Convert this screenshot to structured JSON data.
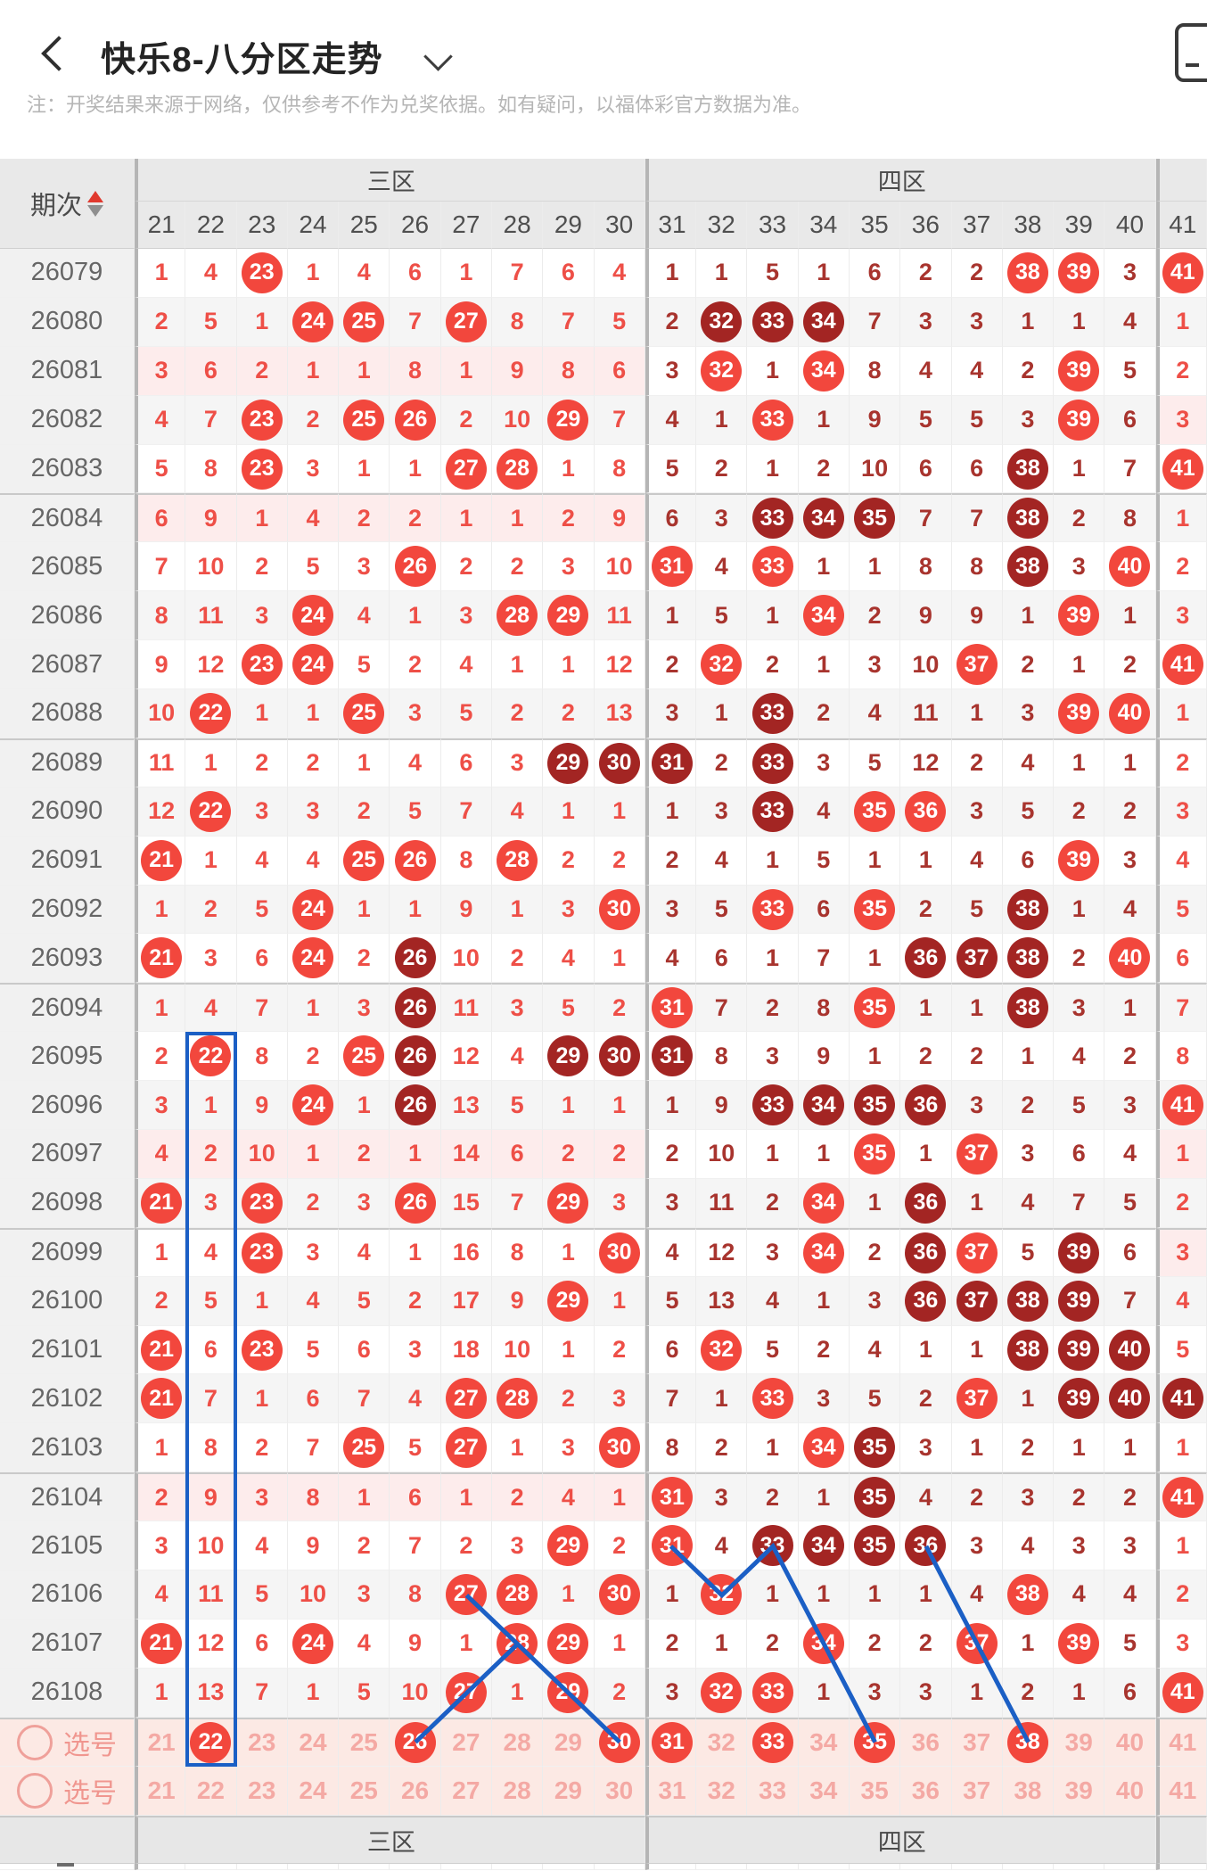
{
  "app": {
    "back_icon": "chevron-left",
    "title": "快乐8-八分区走势",
    "title_dropdown_icon": "chevron-down",
    "corner_icon": "device-screenshot"
  },
  "note": "注：开奖结果来源于网络，仅供参考不作为兑奖依据。如有疑问，以福体彩官方数据为准。",
  "colors": {
    "circle_light": "#f2473d",
    "circle_dark": "#a32523",
    "text_zone3": "#ee4f47",
    "text_zone4": "#a8342e",
    "blue": "#1b5fc5",
    "pink_row": "#fdecec",
    "sel_row_bg": "#fce9e4",
    "sel_text": "#f4a9a4",
    "period_col_bg": "#f1f1f1",
    "header_bg": "#e9e9e9"
  },
  "table": {
    "period_label": "期次",
    "zone3_label": "三区",
    "zone4_label": "四区",
    "columns": [
      "21",
      "22",
      "23",
      "24",
      "25",
      "26",
      "27",
      "28",
      "29",
      "30",
      "31",
      "32",
      "33",
      "34",
      "35",
      "36",
      "37",
      "38",
      "39",
      "40",
      "41"
    ],
    "zone3_cols": [
      "21",
      "30"
    ],
    "zone4_cols": [
      "31",
      "40"
    ],
    "rows": [
      {
        "period": "26079",
        "cells": [
          "1",
          "4",
          "c",
          "1",
          "4",
          "6",
          "1",
          "7",
          "6",
          "4",
          "1",
          "1",
          "5",
          "1",
          "6",
          "2",
          "2",
          "c",
          "c",
          "3",
          "c"
        ]
      },
      {
        "period": "26080",
        "cells": [
          "2",
          "5",
          "1",
          "c",
          "c",
          "7",
          "c",
          "8",
          "7",
          "5",
          "2",
          "d",
          "d",
          "d",
          "7",
          "3",
          "3",
          "1",
          "1",
          "4",
          "1"
        ]
      },
      {
        "period": "26081",
        "cells": [
          "3",
          "6",
          "2",
          "1",
          "1",
          "8",
          "1",
          "9",
          "8",
          "6",
          "3",
          "c",
          "1",
          "c",
          "8",
          "4",
          "4",
          "2",
          "c",
          "5",
          "2"
        ]
      },
      {
        "period": "26082",
        "cells": [
          "4",
          "7",
          "c",
          "2",
          "c",
          "c",
          "2",
          "10",
          "c",
          "7",
          "4",
          "1",
          "c",
          "1",
          "9",
          "5",
          "5",
          "3",
          "c",
          "6",
          "3"
        ]
      },
      {
        "period": "26083",
        "cells": [
          "5",
          "8",
          "c",
          "3",
          "1",
          "1",
          "c",
          "c",
          "1",
          "8",
          "5",
          "2",
          "1",
          "2",
          "10",
          "6",
          "6",
          "d",
          "1",
          "7",
          "c"
        ]
      },
      {
        "period": "26084",
        "cells": [
          "6",
          "9",
          "1",
          "4",
          "2",
          "2",
          "1",
          "1",
          "2",
          "9",
          "6",
          "3",
          "d",
          "d",
          "d",
          "7",
          "7",
          "d",
          "2",
          "8",
          "1"
        ]
      },
      {
        "period": "26085",
        "cells": [
          "7",
          "10",
          "2",
          "5",
          "3",
          "c",
          "2",
          "2",
          "3",
          "10",
          "c",
          "4",
          "c",
          "1",
          "1",
          "8",
          "8",
          "d",
          "3",
          "c",
          "2"
        ]
      },
      {
        "period": "26086",
        "cells": [
          "8",
          "11",
          "3",
          "c",
          "4",
          "1",
          "3",
          "c",
          "c",
          "11",
          "1",
          "5",
          "1",
          "c",
          "2",
          "9",
          "9",
          "1",
          "c",
          "1",
          "3"
        ]
      },
      {
        "period": "26087",
        "cells": [
          "9",
          "12",
          "c",
          "c",
          "5",
          "2",
          "4",
          "1",
          "1",
          "12",
          "2",
          "c",
          "2",
          "1",
          "3",
          "10",
          "c",
          "2",
          "1",
          "2",
          "c"
        ]
      },
      {
        "period": "26088",
        "cells": [
          "10",
          "c",
          "1",
          "1",
          "c",
          "3",
          "5",
          "2",
          "2",
          "13",
          "3",
          "1",
          "d",
          "2",
          "4",
          "11",
          "1",
          "3",
          "c",
          "c",
          "1"
        ]
      },
      {
        "period": "26089",
        "cells": [
          "11",
          "1",
          "2",
          "2",
          "1",
          "4",
          "6",
          "3",
          "d",
          "d",
          "d",
          "2",
          "d",
          "3",
          "5",
          "12",
          "2",
          "4",
          "1",
          "1",
          "2"
        ]
      },
      {
        "period": "26090",
        "cells": [
          "12",
          "c",
          "3",
          "3",
          "2",
          "5",
          "7",
          "4",
          "1",
          "1",
          "1",
          "3",
          "d",
          "4",
          "c",
          "c",
          "3",
          "5",
          "2",
          "2",
          "3"
        ]
      },
      {
        "period": "26091",
        "cells": [
          "c",
          "1",
          "4",
          "4",
          "c",
          "c",
          "8",
          "c",
          "2",
          "2",
          "2",
          "4",
          "1",
          "5",
          "1",
          "1",
          "4",
          "6",
          "c",
          "3",
          "4"
        ]
      },
      {
        "period": "26092",
        "cells": [
          "1",
          "2",
          "5",
          "c",
          "1",
          "1",
          "9",
          "1",
          "3",
          "c",
          "3",
          "5",
          "c",
          "6",
          "c",
          "2",
          "5",
          "d",
          "1",
          "4",
          "5"
        ]
      },
      {
        "period": "26093",
        "cells": [
          "c",
          "3",
          "6",
          "c",
          "2",
          "d",
          "10",
          "2",
          "4",
          "1",
          "4",
          "6",
          "1",
          "7",
          "1",
          "d",
          "d",
          "d",
          "2",
          "c",
          "6"
        ]
      },
      {
        "period": "26094",
        "cells": [
          "1",
          "4",
          "7",
          "1",
          "3",
          "d",
          "11",
          "3",
          "5",
          "2",
          "c",
          "7",
          "2",
          "8",
          "c",
          "1",
          "1",
          "d",
          "3",
          "1",
          "7"
        ]
      },
      {
        "period": "26095",
        "cells": [
          "2",
          "c",
          "8",
          "2",
          "c",
          "d",
          "12",
          "4",
          "d",
          "d",
          "d",
          "8",
          "3",
          "9",
          "1",
          "2",
          "2",
          "1",
          "4",
          "2",
          "8"
        ]
      },
      {
        "period": "26096",
        "cells": [
          "3",
          "1",
          "9",
          "c",
          "1",
          "d",
          "13",
          "5",
          "1",
          "1",
          "1",
          "9",
          "d",
          "d",
          "d",
          "d",
          "3",
          "2",
          "5",
          "3",
          "c"
        ]
      },
      {
        "period": "26097",
        "cells": [
          "4",
          "2",
          "10",
          "1",
          "2",
          "1",
          "14",
          "6",
          "2",
          "2",
          "2",
          "10",
          "1",
          "1",
          "c",
          "1",
          "c",
          "3",
          "6",
          "4",
          "1"
        ]
      },
      {
        "period": "26098",
        "cells": [
          "c",
          "3",
          "c",
          "2",
          "3",
          "c",
          "15",
          "7",
          "c",
          "3",
          "3",
          "11",
          "2",
          "c",
          "1",
          "d",
          "1",
          "4",
          "7",
          "5",
          "2"
        ]
      },
      {
        "period": "26099",
        "cells": [
          "1",
          "4",
          "c",
          "3",
          "4",
          "1",
          "16",
          "8",
          "1",
          "c",
          "4",
          "12",
          "3",
          "c",
          "2",
          "d",
          "c",
          "5",
          "d",
          "6",
          "3"
        ]
      },
      {
        "period": "26100",
        "cells": [
          "2",
          "5",
          "1",
          "4",
          "5",
          "2",
          "17",
          "9",
          "c",
          "1",
          "5",
          "13",
          "4",
          "1",
          "3",
          "d",
          "d",
          "d",
          "d",
          "7",
          "4"
        ]
      },
      {
        "period": "26101",
        "cells": [
          "c",
          "6",
          "c",
          "5",
          "6",
          "3",
          "18",
          "10",
          "1",
          "2",
          "6",
          "c",
          "5",
          "2",
          "4",
          "1",
          "1",
          "d",
          "d",
          "d",
          "5"
        ]
      },
      {
        "period": "26102",
        "cells": [
          "c",
          "7",
          "1",
          "6",
          "7",
          "4",
          "c",
          "c",
          "2",
          "3",
          "7",
          "1",
          "c",
          "3",
          "5",
          "2",
          "c",
          "1",
          "d",
          "d",
          "d"
        ]
      },
      {
        "period": "26103",
        "cells": [
          "1",
          "8",
          "2",
          "7",
          "c",
          "5",
          "c",
          "1",
          "3",
          "c",
          "8",
          "2",
          "1",
          "c",
          "d",
          "3",
          "1",
          "2",
          "1",
          "1",
          "1"
        ]
      },
      {
        "period": "26104",
        "cells": [
          "2",
          "9",
          "3",
          "8",
          "1",
          "6",
          "1",
          "2",
          "4",
          "1",
          "c",
          "3",
          "2",
          "1",
          "d",
          "4",
          "2",
          "3",
          "2",
          "2",
          "c"
        ]
      },
      {
        "period": "26105",
        "cells": [
          "3",
          "10",
          "4",
          "9",
          "2",
          "7",
          "2",
          "3",
          "c",
          "2",
          "c",
          "4",
          "d",
          "d",
          "d",
          "d",
          "3",
          "4",
          "3",
          "3",
          "1"
        ]
      },
      {
        "period": "26106",
        "cells": [
          "4",
          "11",
          "5",
          "10",
          "3",
          "8",
          "c",
          "c",
          "1",
          "c",
          "1",
          "c",
          "1",
          "1",
          "1",
          "1",
          "4",
          "c",
          "4",
          "4",
          "2"
        ]
      },
      {
        "period": "26107",
        "cells": [
          "c",
          "12",
          "6",
          "c",
          "4",
          "9",
          "1",
          "c",
          "c",
          "1",
          "2",
          "1",
          "2",
          "c",
          "2",
          "2",
          "c",
          "1",
          "c",
          "5",
          "3"
        ]
      },
      {
        "period": "26108",
        "cells": [
          "1",
          "13",
          "7",
          "1",
          "5",
          "10",
          "c",
          "1",
          "c",
          "2",
          "3",
          "c",
          "c",
          "1",
          "3",
          "3",
          "1",
          "2",
          "1",
          "6",
          "c"
        ]
      }
    ],
    "pink_zone3_rows": [
      "26081",
      "26084",
      "26097",
      "26104"
    ],
    "pink_col41_rows": [
      "26082",
      "26097",
      "26099"
    ],
    "group_top_rows": [
      "26084",
      "26089",
      "26094",
      "26099",
      "26104"
    ],
    "selection_rows": [
      {
        "label": "选号",
        "selected": [
          "22",
          "26",
          "30",
          "31",
          "33",
          "35",
          "38"
        ]
      },
      {
        "label": "选号",
        "selected": []
      }
    ],
    "footer_zone3": "三区",
    "footer_zone4": "四区"
  },
  "highlights": {
    "column_box": {
      "column": "22",
      "start_period": "26095",
      "end": "sel"
    },
    "trend_lines": [
      {
        "points": [
          [
            27,
            "26106"
          ],
          [
            28,
            "26107"
          ],
          [
            29,
            "26108"
          ],
          [
            30,
            "sel"
          ]
        ]
      },
      {
        "points": [
          [
            28,
            "26107"
          ],
          [
            27,
            "26108"
          ],
          [
            26,
            "sel"
          ]
        ]
      },
      {
        "points": [
          [
            31,
            "26105"
          ],
          [
            32,
            "26106"
          ],
          [
            33,
            "26105"
          ],
          [
            34,
            "26107"
          ],
          [
            35,
            "sel"
          ]
        ]
      },
      {
        "points": [
          [
            36,
            "26105"
          ],
          [
            37,
            "26107"
          ],
          [
            38,
            "sel"
          ]
        ]
      }
    ]
  }
}
